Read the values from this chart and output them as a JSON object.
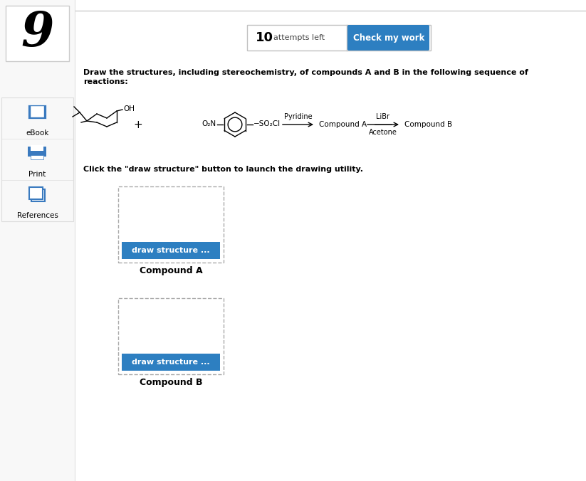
{
  "bg_color": "#ffffff",
  "sidebar_bg": "#f8f8f8",
  "sidebar_border": "#e0e0e0",
  "number_text": "9",
  "number_fontsize": 48,
  "attempts_text": "10",
  "attempts_label": "  attempts left",
  "check_btn_text": "Check my work",
  "check_btn_color": "#2d7fc1",
  "check_btn_text_color": "#ffffff",
  "instruction_line1": "Draw the structures, including stereochemistry, of compounds A and B in the following sequence of",
  "instruction_line2": "reactions:",
  "click_text": "Click the \"draw structure\" button to launch the drawing utility.",
  "draw_btn_text": "draw structure ...",
  "draw_btn_color": "#2d7fc1",
  "draw_btn_text_color": "#ffffff",
  "compound_a_label": "Compound A",
  "compound_b_label": "Compound B",
  "pyridine_label": "Pyridine",
  "libr_label": "LiBr",
  "acetone_label": "Acetone",
  "compound_a_arrow_label": "Compound A",
  "compound_b_arrow_label": "Compound B",
  "sidebar_icon_color": "#3a7abf",
  "dashed_box_color": "#aaaaaa",
  "top_line_color": "#cccccc",
  "sidebar_labels": [
    "eBook",
    "Print",
    "References"
  ],
  "sidebar_item_border": "#dddddd"
}
